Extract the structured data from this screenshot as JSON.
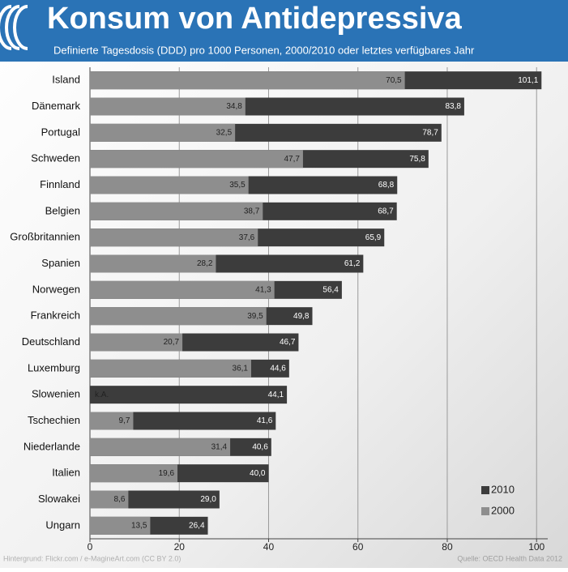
{
  "chart_data": {
    "type": "bar",
    "orientation": "horizontal",
    "overlap": true,
    "title": "Konsum von Antidepressiva",
    "subtitle": "Definierte Tagesdosis (DDD) pro 1000 Personen, 2000/2010 oder letztes verfügbares Jahr",
    "categories": [
      "Island",
      "Dänemark",
      "Portugal",
      "Schweden",
      "Finnland",
      "Belgien",
      "Großbritannien",
      "Spanien",
      "Norwegen",
      "Frankreich",
      "Deutschland",
      "Luxemburg",
      "Slowenien",
      "Tschechien",
      "Niederlande",
      "Italien",
      "Slowakei",
      "Ungarn"
    ],
    "series": [
      {
        "name": "2010",
        "color": "#3c3c3c",
        "values": [
          101.1,
          83.8,
          78.7,
          75.8,
          68.8,
          68.7,
          65.9,
          61.2,
          56.4,
          49.8,
          46.7,
          44.6,
          44.1,
          41.6,
          40.6,
          40.0,
          29.0,
          26.4
        ],
        "value_labels": [
          "101,1",
          "83,8",
          "78,7",
          "75,8",
          "68,8",
          "68,7",
          "65,9",
          "61,2",
          "56,4",
          "49,8",
          "46,7",
          "44,6",
          "44,1",
          "41,6",
          "40,6",
          "40,0",
          "29,0",
          "26,4"
        ]
      },
      {
        "name": "2000",
        "color": "#8e8e8e",
        "values": [
          70.5,
          34.8,
          32.5,
          47.7,
          35.5,
          38.7,
          37.6,
          28.2,
          41.3,
          39.5,
          20.7,
          36.1,
          null,
          9.7,
          31.4,
          19.6,
          8.6,
          13.5
        ],
        "value_labels": [
          "70,5",
          "34,8",
          "32,5",
          "47,7",
          "35,5",
          "38,7",
          "37,6",
          "28,2",
          "41,3",
          "39,5",
          "20,7",
          "36,1",
          "k.A.",
          "9,7",
          "31,4",
          "19,6",
          "8,6",
          "13,5"
        ]
      }
    ],
    "xlim": [
      0,
      102.5
    ],
    "xticks": [
      0,
      20,
      40,
      60,
      80,
      100
    ],
    "grid": true,
    "legend": "lower right",
    "notes": [
      "Hintergrund: Flickr.com / e-MagineArt.com (CC BY 2.0)",
      "Quelle: OECD Health Data 2012"
    ]
  }
}
